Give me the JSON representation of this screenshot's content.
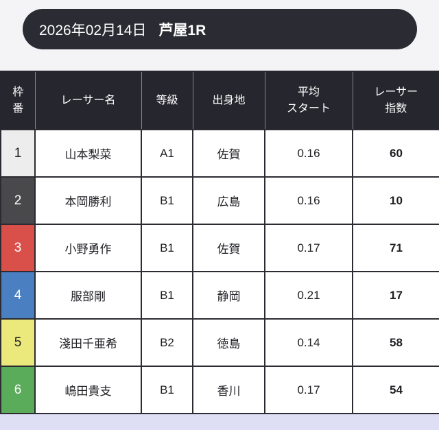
{
  "page": {
    "background_top": "#f4f4f7",
    "background_bottom": "#dedef5"
  },
  "header": {
    "date": "2026年02月14日",
    "race": "芦屋1R",
    "bar_color": "#2b2b33",
    "text_color": "#ffffff"
  },
  "table": {
    "header_bg": "#26262e",
    "border_color": "#2b2b31",
    "columns": [
      {
        "key": "waku",
        "label": "枠番",
        "lines": [
          "枠",
          "番"
        ]
      },
      {
        "key": "name",
        "label": "レーサー名"
      },
      {
        "key": "grade",
        "label": "等級"
      },
      {
        "key": "origin",
        "label": "出身地"
      },
      {
        "key": "avg_start",
        "label": "平均スタート",
        "lines": [
          "平均",
          "スタート"
        ]
      },
      {
        "key": "index",
        "label": "レーサー指数",
        "lines": [
          "レーサー",
          "指数"
        ]
      }
    ],
    "rows": [
      {
        "waku": "1",
        "waku_bg": "#ededee",
        "waku_fg": "#222222",
        "name": "山本梨菜",
        "grade": "A1",
        "origin": "佐賀",
        "avg_start": "0.16",
        "index": "60"
      },
      {
        "waku": "2",
        "waku_bg": "#49494b",
        "waku_fg": "#ffffff",
        "name": "本岡勝利",
        "grade": "B1",
        "origin": "広島",
        "avg_start": "0.16",
        "index": "10"
      },
      {
        "waku": "3",
        "waku_bg": "#d9504b",
        "waku_fg": "#ffffff",
        "name": "小野勇作",
        "grade": "B1",
        "origin": "佐賀",
        "avg_start": "0.17",
        "index": "71"
      },
      {
        "waku": "4",
        "waku_bg": "#4a7fc1",
        "waku_fg": "#ffffff",
        "name": "服部剛",
        "grade": "B1",
        "origin": "静岡",
        "avg_start": "0.21",
        "index": "17"
      },
      {
        "waku": "5",
        "waku_bg": "#ebe87c",
        "waku_fg": "#222222",
        "name": "淺田千亜希",
        "grade": "B2",
        "origin": "徳島",
        "avg_start": "0.14",
        "index": "58"
      },
      {
        "waku": "6",
        "waku_bg": "#5aab5a",
        "waku_fg": "#ffffff",
        "name": "嶋田貴支",
        "grade": "B1",
        "origin": "香川",
        "avg_start": "0.17",
        "index": "54"
      }
    ]
  }
}
